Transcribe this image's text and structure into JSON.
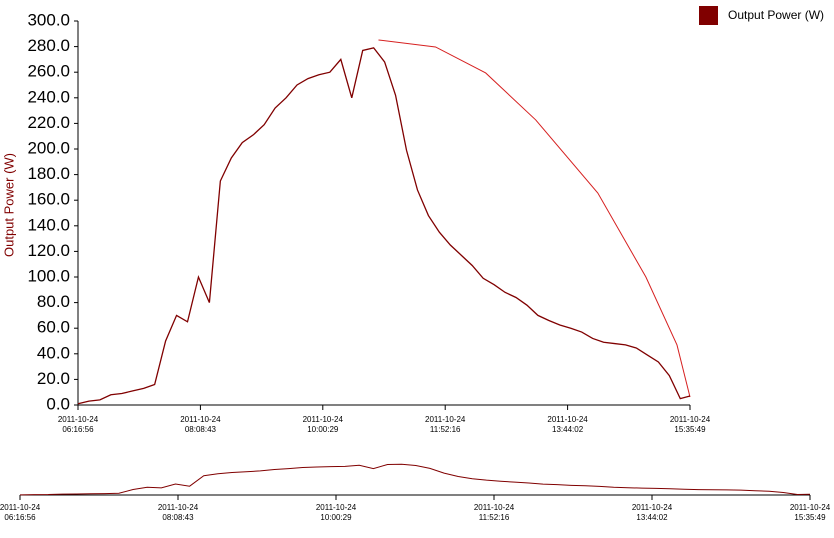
{
  "chart_data": {
    "type": "line",
    "y_label": "Output Power (W)",
    "legend": "top-right",
    "grid": false,
    "x": [
      "2011-10-24 06:16:56",
      "2011-10-24 06:26:56",
      "2011-10-24 06:36:56",
      "2011-10-24 06:46:56",
      "2011-10-24 06:56:56",
      "2011-10-24 07:06:56",
      "2011-10-24 07:16:56",
      "2011-10-24 07:26:56",
      "2011-10-24 07:36:56",
      "2011-10-24 07:46:56",
      "2011-10-24 07:56:56",
      "2011-10-24 08:06:56",
      "2011-10-24 08:16:56",
      "2011-10-24 08:26:56",
      "2011-10-24 08:36:56",
      "2011-10-24 08:46:56",
      "2011-10-24 08:56:56",
      "2011-10-24 09:06:56",
      "2011-10-24 09:16:56",
      "2011-10-24 09:26:56",
      "2011-10-24 09:36:56",
      "2011-10-24 09:46:56",
      "2011-10-24 09:56:56",
      "2011-10-24 10:06:56",
      "2011-10-24 10:16:56",
      "2011-10-24 10:26:56",
      "2011-10-24 10:36:56",
      "2011-10-24 10:46:56",
      "2011-10-24 10:56:56",
      "2011-10-24 11:06:56",
      "2011-10-24 11:16:56",
      "2011-10-24 11:26:56",
      "2011-10-24 11:36:56",
      "2011-10-24 11:46:56",
      "2011-10-24 11:56:56",
      "2011-10-24 12:06:56",
      "2011-10-24 12:16:56",
      "2011-10-24 12:26:56",
      "2011-10-24 12:36:56",
      "2011-10-24 12:46:56",
      "2011-10-24 12:56:56",
      "2011-10-24 13:06:56",
      "2011-10-24 13:16:56",
      "2011-10-24 13:26:56",
      "2011-10-24 13:36:56",
      "2011-10-24 13:46:56",
      "2011-10-24 13:56:56",
      "2011-10-24 14:06:56",
      "2011-10-24 14:16:56",
      "2011-10-24 14:26:56",
      "2011-10-24 14:36:56",
      "2011-10-24 14:46:56",
      "2011-10-24 14:56:56",
      "2011-10-24 15:06:56",
      "2011-10-24 15:16:56",
      "2011-10-24 15:26:56",
      "2011-10-24 15:35:49"
    ],
    "series": [
      {
        "name": "Output Power (W)",
        "color": "#800000",
        "values": [
          1,
          3,
          4,
          8,
          9,
          11,
          13,
          16,
          50,
          70,
          65,
          100,
          80,
          175,
          193,
          205,
          211,
          219,
          232,
          240,
          250,
          255,
          258,
          260,
          270,
          240,
          277,
          279,
          268,
          242,
          199,
          168,
          148,
          135,
          125,
          117,
          109,
          99,
          94,
          88,
          84,
          78,
          70,
          66,
          62.5,
          60,
          57,
          52,
          49,
          48,
          47,
          44.5,
          39,
          33.6,
          23,
          5,
          7
        ]
      }
    ],
    "envelope": {
      "color": "#d62020",
      "x": [
        "2011-10-24 10:51:20",
        "2011-10-24 11:43:26",
        "2011-10-24 12:29:14",
        "2011-10-24 13:14:56",
        "2011-10-24 14:11:38",
        "2011-10-24 14:55:32",
        "2011-10-24 15:23:56",
        "2011-10-24 15:35:49"
      ],
      "values": [
        285.2,
        279.7,
        259.4,
        222.7,
        165.6,
        100.0,
        46.9,
        6.25
      ]
    },
    "xlim": [
      "2011-10-24 06:16:56",
      "2011-10-24 15:35:49"
    ],
    "xticks": [
      "2011-10-24 06:16:56",
      "2011-10-24 08:08:43",
      "2011-10-24 10:00:29",
      "2011-10-24 11:52:16",
      "2011-10-24 13:44:02",
      "2011-10-24 15:35:49"
    ],
    "ylim": [
      0,
      300
    ],
    "yticks": [
      {
        "value": 0,
        "label": "0.0"
      },
      {
        "value": 20,
        "label": "20.0"
      },
      {
        "value": 40,
        "label": "40.0"
      },
      {
        "value": 60,
        "label": "60.0"
      },
      {
        "value": 80,
        "label": "80.0"
      },
      {
        "value": 100,
        "label": "100.0"
      },
      {
        "value": 120,
        "label": "120.0"
      },
      {
        "value": 140,
        "label": "140.0"
      },
      {
        "value": 160,
        "label": "160.0"
      },
      {
        "value": 180,
        "label": "180.0"
      },
      {
        "value": 200,
        "label": "200.0"
      },
      {
        "value": 220,
        "label": "220.0"
      },
      {
        "value": 240,
        "label": "240.0"
      },
      {
        "value": 260,
        "label": "260.0"
      },
      {
        "value": 280,
        "label": "280.0"
      },
      {
        "value": 300,
        "label": "300.0"
      }
    ]
  }
}
